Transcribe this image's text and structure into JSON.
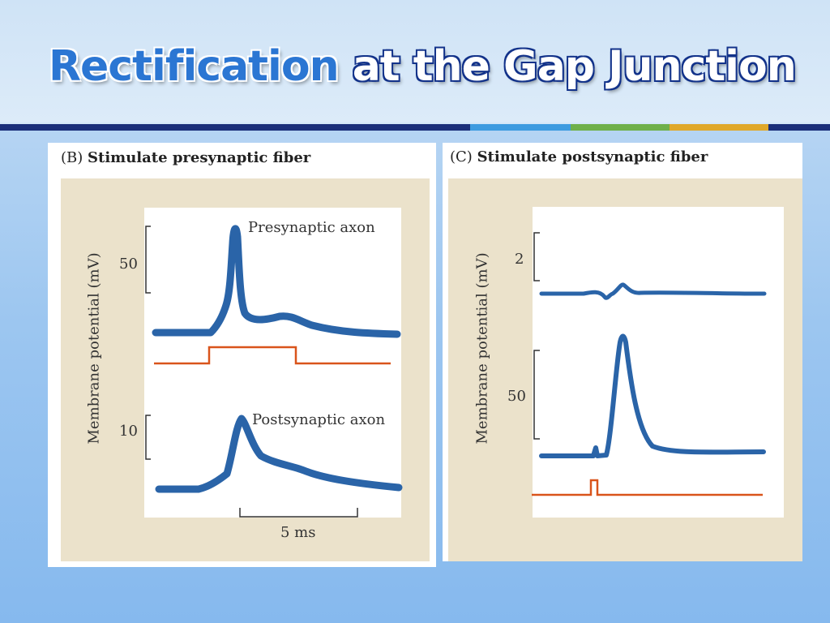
{
  "slide": {
    "title_highlight": "Rectification",
    "title_rest": "at the Gap Junction"
  },
  "colors": {
    "rule": "#1b2f7a",
    "accent_blue": "#3d9be0",
    "accent_green": "#6fb04a",
    "accent_gold": "#e0a82a",
    "trace": "#2a64a8",
    "stimulus": "#d9541b",
    "panel_bg": "#ebe2cb"
  },
  "panel_b": {
    "label": "(B)",
    "heading": "Stimulate presynaptic fiber",
    "y_axis_label": "Membrane potential (mV)",
    "trace_top_label": "Presynaptic axon",
    "trace_bottom_label": "Postsynaptic axon",
    "scale_top": "50",
    "scale_bottom": "10",
    "time_scale": "5 ms"
  },
  "panel_c": {
    "label": "(C)",
    "heading": "Stimulate postsynaptic fiber",
    "y_axis_label": "Membrane potential (mV)",
    "scale_top": "2",
    "scale_bottom": "50"
  }
}
